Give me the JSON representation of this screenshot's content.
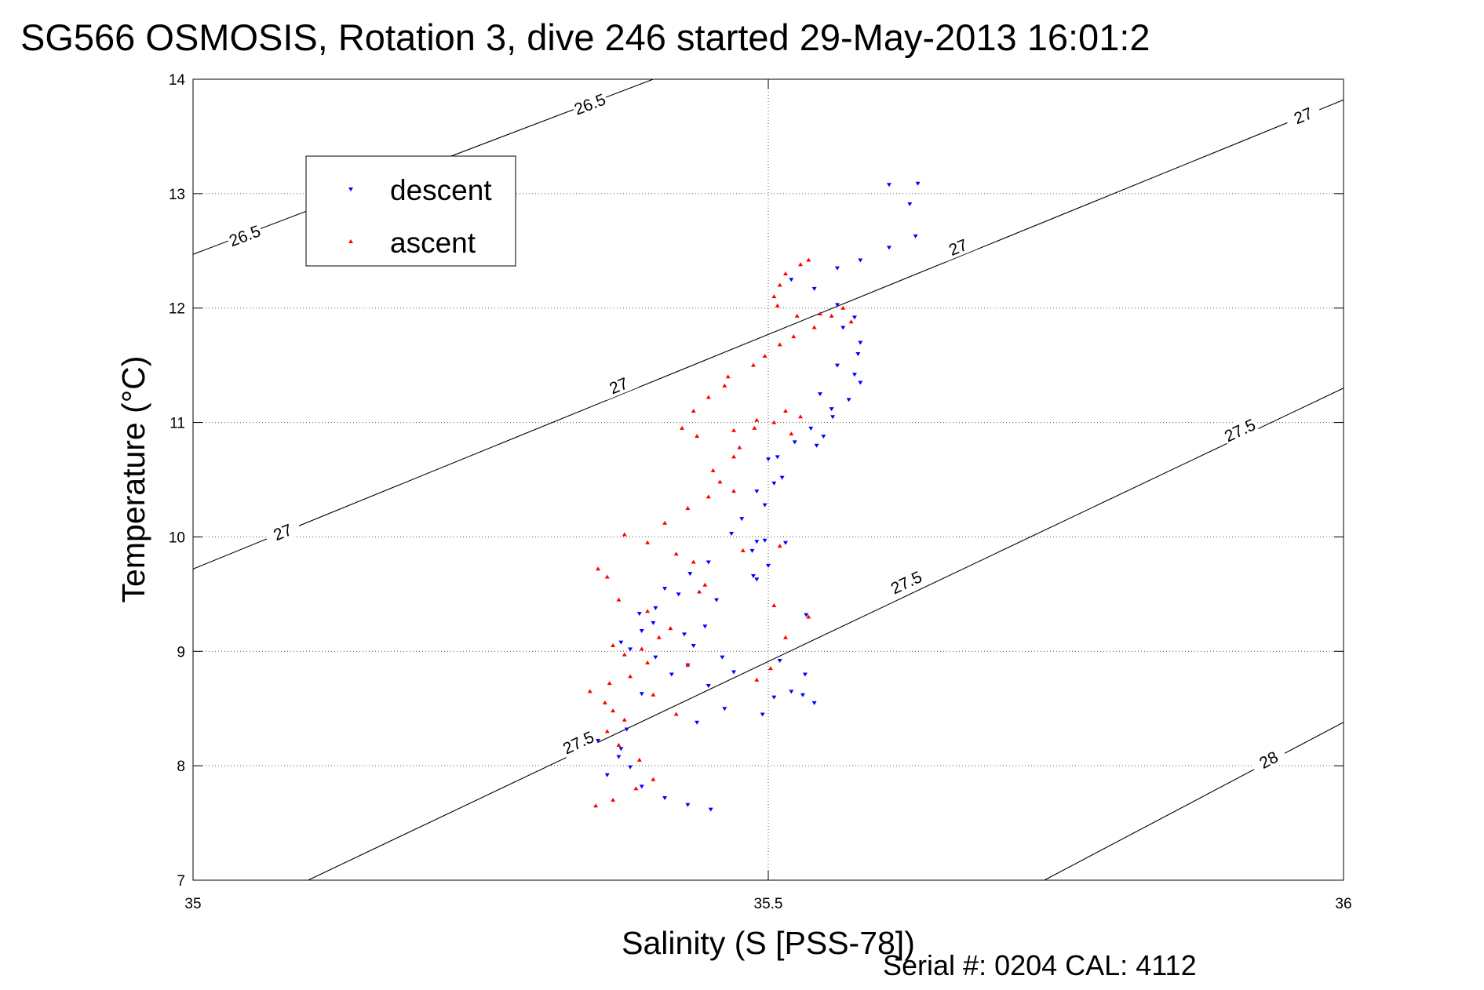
{
  "title": "SG566 OSMOSIS, Rotation 3, dive 246 started 29-May-2013 16:01:2",
  "footer": "Serial #: 0204  CAL: 4112",
  "chart_data": {
    "type": "scatter",
    "xlabel": "Salinity (S [PSS-78])",
    "ylabel": "Temperature (°C)",
    "xlim": [
      35,
      36
    ],
    "ylim": [
      7,
      14
    ],
    "xticks": [
      35,
      35.5,
      36
    ],
    "yticks": [
      7,
      8,
      9,
      10,
      11,
      12,
      13,
      14
    ],
    "xtick_labels": [
      "35",
      "35.5",
      "36"
    ],
    "ytick_labels": [
      "7",
      "8",
      "9",
      "10",
      "11",
      "12",
      "13",
      "14"
    ],
    "grid": true,
    "legend_position": "top-left",
    "density_contours": [
      {
        "label": "26.5",
        "points": [
          [
            35.0,
            12.47
          ],
          [
            35.4,
            14.0
          ]
        ],
        "labels_at": [
          [
            35.045,
            12.63
          ],
          [
            35.345,
            13.78
          ]
        ]
      },
      {
        "label": "27",
        "points": [
          [
            35.0,
            9.72
          ],
          [
            36.0,
            13.82
          ]
        ],
        "labels_at": [
          [
            35.078,
            10.04
          ],
          [
            35.37,
            11.32
          ],
          [
            35.665,
            12.53
          ],
          [
            35.965,
            13.68
          ]
        ]
      },
      {
        "label": "27.5",
        "points": [
          [
            35.1,
            7.0
          ],
          [
            36.0,
            11.3
          ]
        ],
        "labels_at": [
          [
            35.335,
            8.2
          ],
          [
            35.62,
            9.6
          ],
          [
            35.91,
            10.93
          ]
        ]
      },
      {
        "label": "28",
        "points": [
          [
            35.74,
            7.0
          ],
          [
            36.0,
            8.38
          ]
        ],
        "labels_at": [
          [
            35.935,
            8.05
          ]
        ]
      }
    ],
    "series": [
      {
        "name": "descent",
        "color": "#0000ff",
        "marker": "triangle-down",
        "x": [
          35.605,
          35.63,
          35.623,
          35.628,
          35.605,
          35.58,
          35.56,
          35.52,
          35.54,
          35.56,
          35.575,
          35.565,
          35.58,
          35.578,
          35.575,
          35.58,
          35.57,
          35.556,
          35.537,
          35.523,
          35.508,
          35.5,
          35.512,
          35.505,
          35.49,
          35.497,
          35.477,
          35.468,
          35.49,
          35.486,
          35.448,
          35.432,
          35.41,
          35.422,
          35.402,
          35.388,
          35.4,
          35.39,
          35.372,
          35.38,
          35.402,
          35.43,
          35.416,
          35.39,
          35.448,
          35.47,
          35.51,
          35.532,
          35.505,
          35.495,
          35.462,
          35.438,
          35.377,
          35.352,
          35.372,
          35.37,
          35.38,
          35.36,
          35.39,
          35.41,
          35.43,
          35.45,
          35.49,
          35.455,
          35.445,
          35.427,
          35.435,
          35.46,
          35.52,
          35.53,
          35.54,
          35.497,
          35.533,
          35.5,
          35.487,
          35.515,
          35.542,
          35.548,
          35.555,
          35.545,
          35.56
        ],
        "y": [
          13.08,
          13.09,
          12.91,
          12.63,
          12.53,
          12.42,
          12.35,
          12.25,
          12.17,
          12.03,
          11.92,
          11.83,
          11.7,
          11.6,
          11.42,
          11.35,
          11.2,
          11.05,
          10.95,
          10.83,
          10.7,
          10.68,
          10.52,
          10.47,
          10.4,
          10.28,
          10.16,
          10.03,
          9.96,
          9.88,
          9.78,
          9.68,
          9.55,
          9.5,
          9.38,
          9.33,
          9.25,
          9.18,
          9.08,
          9.02,
          8.95,
          8.88,
          8.8,
          8.63,
          8.7,
          8.82,
          8.92,
          8.8,
          8.6,
          8.45,
          8.5,
          8.38,
          8.32,
          8.22,
          8.15,
          8.08,
          7.99,
          7.92,
          7.82,
          7.72,
          7.66,
          7.62,
          9.63,
          9.45,
          9.22,
          9.15,
          9.05,
          8.95,
          8.65,
          8.62,
          8.55,
          9.97,
          9.32,
          9.75,
          9.66,
          9.95,
          10.8,
          10.88,
          11.12,
          11.25,
          11.5
        ]
      },
      {
        "name": "ascent",
        "color": "#ff0000",
        "marker": "triangle-up",
        "x": [
          35.535,
          35.528,
          35.515,
          35.51,
          35.505,
          35.508,
          35.525,
          35.545,
          35.555,
          35.565,
          35.572,
          35.54,
          35.522,
          35.51,
          35.497,
          35.487,
          35.465,
          35.462,
          35.448,
          35.435,
          35.425,
          35.438,
          35.47,
          35.49,
          35.505,
          35.52,
          35.528,
          35.515,
          35.488,
          35.475,
          35.47,
          35.452,
          35.458,
          35.47,
          35.448,
          35.43,
          35.41,
          35.375,
          35.395,
          35.42,
          35.435,
          35.478,
          35.51,
          35.445,
          35.44,
          35.352,
          35.36,
          35.37,
          35.395,
          35.415,
          35.405,
          35.39,
          35.365,
          35.375,
          35.395,
          35.38,
          35.362,
          35.345,
          35.358,
          35.365,
          35.42,
          35.49,
          35.502,
          35.515,
          35.535,
          35.505,
          35.43,
          35.4,
          35.375,
          35.36,
          35.37,
          35.388,
          35.4,
          35.385,
          35.365,
          35.35
        ],
        "y": [
          12.42,
          12.38,
          12.3,
          12.2,
          12.1,
          12.02,
          11.93,
          11.95,
          11.93,
          12.0,
          11.88,
          11.83,
          11.75,
          11.68,
          11.58,
          11.5,
          11.4,
          11.32,
          11.22,
          11.1,
          10.95,
          10.88,
          10.93,
          11.02,
          11.0,
          10.9,
          11.05,
          11.1,
          10.95,
          10.78,
          10.7,
          10.58,
          10.48,
          10.4,
          10.35,
          10.25,
          10.12,
          10.02,
          9.95,
          9.85,
          9.78,
          9.88,
          9.92,
          9.58,
          9.52,
          9.72,
          9.65,
          9.45,
          9.35,
          9.2,
          9.12,
          9.02,
          9.05,
          8.97,
          8.9,
          8.78,
          8.72,
          8.65,
          8.55,
          8.48,
          8.45,
          8.75,
          8.85,
          9.12,
          9.3,
          9.4,
          8.88,
          8.62,
          8.4,
          8.3,
          8.18,
          8.05,
          7.88,
          7.8,
          7.7,
          7.65
        ]
      }
    ]
  }
}
